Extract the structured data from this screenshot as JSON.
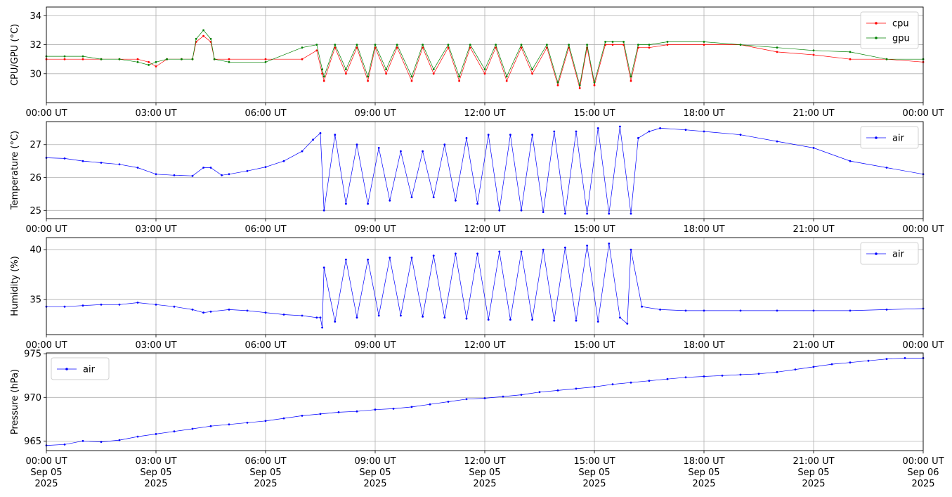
{
  "chart_data": [
    {
      "type": "line",
      "ylabel": "CPU/GPU (°C)",
      "xlim": [
        0,
        24
      ],
      "ylim": [
        28,
        34.6
      ],
      "yticks": [
        30,
        32,
        34
      ],
      "grid": true,
      "legend": "top-right",
      "x_tick_labels": [
        "00:00 UT",
        "03:00 UT",
        "06:00 UT",
        "09:00 UT",
        "12:00 UT",
        "15:00 UT",
        "18:00 UT",
        "21:00 UT",
        "00:00 UT"
      ],
      "series": [
        {
          "name": "cpu",
          "color": "#ff0000",
          "x": [
            0,
            0.5,
            1.0,
            1.5,
            2.0,
            2.5,
            2.8,
            3.0,
            3.3,
            3.7,
            4.0,
            4.1,
            4.3,
            4.5,
            4.6,
            5.0,
            6.0,
            7.0,
            7.4,
            7.55,
            7.6,
            7.9,
            8.2,
            8.5,
            8.8,
            9.0,
            9.3,
            9.6,
            10.0,
            10.3,
            10.6,
            11.0,
            11.3,
            11.6,
            12.0,
            12.3,
            12.6,
            13.0,
            13.3,
            13.7,
            14.0,
            14.3,
            14.6,
            14.8,
            15.0,
            15.3,
            15.5,
            15.8,
            16.0,
            16.2,
            16.5,
            17.0,
            18.0,
            19.0,
            20.0,
            21.0,
            22.0,
            23.0,
            24.0
          ],
          "y": [
            31.0,
            31.0,
            31.0,
            31.0,
            31.0,
            31.0,
            30.8,
            30.5,
            31.0,
            31.0,
            31.0,
            32.2,
            32.6,
            32.2,
            31.0,
            31.0,
            31.0,
            31.0,
            31.6,
            30.0,
            29.5,
            31.8,
            30.0,
            31.8,
            29.5,
            31.8,
            30.0,
            31.8,
            29.5,
            31.8,
            30.0,
            31.8,
            29.5,
            31.8,
            30.0,
            31.8,
            29.5,
            31.8,
            30.0,
            31.8,
            29.2,
            31.8,
            29.0,
            31.8,
            29.2,
            32.0,
            32.0,
            32.0,
            29.5,
            31.8,
            31.8,
            32.0,
            32.0,
            32.0,
            31.5,
            31.3,
            31.0,
            31.0,
            30.8
          ]
        },
        {
          "name": "gpu",
          "color": "#008000",
          "x": [
            0,
            0.5,
            1.0,
            1.5,
            2.0,
            2.5,
            2.8,
            3.0,
            3.3,
            3.7,
            4.0,
            4.1,
            4.3,
            4.5,
            4.6,
            5.0,
            6.0,
            7.0,
            7.4,
            7.55,
            7.6,
            7.9,
            8.2,
            8.5,
            8.8,
            9.0,
            9.3,
            9.6,
            10.0,
            10.3,
            10.6,
            11.0,
            11.3,
            11.6,
            12.0,
            12.3,
            12.6,
            13.0,
            13.3,
            13.7,
            14.0,
            14.3,
            14.6,
            14.8,
            15.0,
            15.3,
            15.5,
            15.8,
            16.0,
            16.2,
            16.5,
            17.0,
            18.0,
            19.0,
            20.0,
            21.0,
            22.0,
            23.0,
            24.0
          ],
          "y": [
            31.2,
            31.2,
            31.2,
            31.0,
            31.0,
            30.8,
            30.6,
            30.8,
            31.0,
            31.0,
            31.0,
            32.4,
            33.0,
            32.4,
            31.0,
            30.8,
            30.8,
            31.8,
            32.0,
            30.3,
            29.8,
            32.0,
            30.3,
            32.0,
            29.8,
            32.0,
            30.3,
            32.0,
            29.8,
            32.0,
            30.3,
            32.0,
            29.8,
            32.0,
            30.3,
            32.0,
            29.8,
            32.0,
            30.3,
            32.0,
            29.4,
            32.0,
            29.2,
            32.0,
            29.4,
            32.2,
            32.2,
            32.2,
            29.8,
            32.0,
            32.0,
            32.2,
            32.2,
            32.0,
            31.8,
            31.6,
            31.5,
            31.0,
            31.0
          ]
        }
      ]
    },
    {
      "type": "line",
      "ylabel": "Temperature (°C)",
      "xlim": [
        0,
        24
      ],
      "ylim": [
        24.75,
        27.7
      ],
      "yticks": [
        25,
        26,
        27
      ],
      "grid": true,
      "legend": "top-right",
      "x_tick_labels": [
        "00:00 UT",
        "03:00 UT",
        "06:00 UT",
        "09:00 UT",
        "12:00 UT",
        "15:00 UT",
        "18:00 UT",
        "21:00 UT",
        "00:00 UT"
      ],
      "series": [
        {
          "name": "air",
          "color": "#0000ff",
          "x": [
            0,
            0.5,
            1.0,
            1.5,
            2.0,
            2.5,
            3.0,
            3.5,
            4.0,
            4.3,
            4.5,
            4.8,
            5.0,
            5.5,
            6.0,
            6.5,
            7.0,
            7.3,
            7.5,
            7.6,
            7.9,
            8.2,
            8.5,
            8.8,
            9.1,
            9.4,
            9.7,
            10.0,
            10.3,
            10.6,
            10.9,
            11.2,
            11.5,
            11.8,
            12.1,
            12.4,
            12.7,
            13.0,
            13.3,
            13.6,
            13.9,
            14.2,
            14.5,
            14.8,
            15.1,
            15.4,
            15.7,
            16.0,
            16.2,
            16.5,
            16.8,
            17.5,
            18.0,
            19.0,
            20.0,
            21.0,
            22.0,
            23.0,
            24.0
          ],
          "y": [
            26.6,
            26.58,
            26.5,
            26.45,
            26.4,
            26.3,
            26.1,
            26.07,
            26.05,
            26.3,
            26.3,
            26.07,
            26.1,
            26.2,
            26.32,
            26.5,
            26.8,
            27.15,
            27.35,
            25.0,
            27.3,
            25.2,
            27.0,
            25.2,
            26.9,
            25.3,
            26.8,
            25.4,
            26.8,
            25.4,
            27.0,
            25.3,
            27.2,
            25.2,
            27.3,
            25.0,
            27.3,
            25.0,
            27.3,
            24.95,
            27.4,
            24.9,
            27.4,
            24.9,
            27.5,
            24.9,
            27.55,
            24.9,
            27.2,
            27.4,
            27.5,
            27.45,
            27.4,
            27.3,
            27.1,
            26.9,
            26.5,
            26.3,
            26.1
          ]
        }
      ]
    },
    {
      "type": "line",
      "ylabel": "Humidity (%)",
      "xlim": [
        0,
        24
      ],
      "ylim": [
        31.5,
        41.2
      ],
      "yticks": [
        35,
        40
      ],
      "grid": true,
      "legend": "top-right",
      "x_tick_labels": [
        "00:00 UT",
        "03:00 UT",
        "06:00 UT",
        "09:00 UT",
        "12:00 UT",
        "15:00 UT",
        "18:00 UT",
        "21:00 UT",
        "00:00 UT"
      ],
      "series": [
        {
          "name": "air",
          "color": "#0000ff",
          "x": [
            0,
            0.5,
            1.0,
            1.5,
            2.0,
            2.5,
            3.0,
            3.5,
            4.0,
            4.3,
            4.5,
            5.0,
            5.5,
            6.0,
            6.5,
            7.0,
            7.4,
            7.5,
            7.55,
            7.6,
            7.9,
            8.2,
            8.5,
            8.8,
            9.1,
            9.4,
            9.7,
            10.0,
            10.3,
            10.6,
            10.9,
            11.2,
            11.5,
            11.8,
            12.1,
            12.4,
            12.7,
            13.0,
            13.3,
            13.6,
            13.9,
            14.2,
            14.5,
            14.8,
            15.1,
            15.4,
            15.7,
            15.9,
            16.0,
            16.3,
            16.8,
            17.5,
            18.0,
            19.0,
            20.0,
            21.0,
            22.0,
            23.0,
            24.0
          ],
          "y": [
            34.3,
            34.3,
            34.4,
            34.5,
            34.5,
            34.7,
            34.5,
            34.3,
            34.0,
            33.7,
            33.8,
            34.0,
            33.9,
            33.7,
            33.5,
            33.4,
            33.2,
            33.2,
            32.2,
            38.2,
            32.8,
            39.0,
            33.2,
            39.0,
            33.4,
            39.2,
            33.4,
            39.2,
            33.3,
            39.4,
            33.2,
            39.6,
            33.1,
            39.6,
            33.0,
            39.8,
            33.0,
            39.8,
            33.0,
            40.0,
            32.9,
            40.2,
            32.9,
            40.4,
            32.8,
            40.6,
            33.2,
            32.6,
            40.0,
            34.3,
            34.0,
            33.9,
            33.9,
            33.9,
            33.9,
            33.9,
            33.9,
            34.0,
            34.1
          ]
        }
      ]
    },
    {
      "type": "line",
      "ylabel": "Pressure (hPa)",
      "xlim": [
        0,
        24
      ],
      "ylim": [
        963.9,
        975.1
      ],
      "yticks": [
        965,
        970,
        975
      ],
      "grid": true,
      "legend": "top-left",
      "x_tick_labels": [
        "00:00 UT\nSep 05\n2025",
        "03:00 UT\nSep 05\n2025",
        "06:00 UT\nSep 05\n2025",
        "09:00 UT\nSep 05\n2025",
        "12:00 UT\nSep 05\n2025",
        "15:00 UT\nSep 05\n2025",
        "18:00 UT\nSep 05\n2025",
        "21:00 UT\nSep 05\n2025",
        "00:00 UT\nSep 06\n2025"
      ],
      "series": [
        {
          "name": "air",
          "color": "#0000ff",
          "x": [
            0,
            0.5,
            1.0,
            1.5,
            2.0,
            2.5,
            3.0,
            3.5,
            4.0,
            4.5,
            5.0,
            5.5,
            6.0,
            6.5,
            7.0,
            7.5,
            8.0,
            8.5,
            9.0,
            9.5,
            10.0,
            10.5,
            11.0,
            11.5,
            12.0,
            12.5,
            13.0,
            13.5,
            14.0,
            14.5,
            15.0,
            15.5,
            16.0,
            16.5,
            17.0,
            17.5,
            18.0,
            18.5,
            19.0,
            19.5,
            20.0,
            20.5,
            21.0,
            21.5,
            22.0,
            22.5,
            23.0,
            23.5,
            24.0
          ],
          "y": [
            964.5,
            964.6,
            965.0,
            964.9,
            965.1,
            965.5,
            965.8,
            966.1,
            966.4,
            966.7,
            966.9,
            967.1,
            967.3,
            967.6,
            967.9,
            968.1,
            968.3,
            968.4,
            968.6,
            968.7,
            968.9,
            969.2,
            969.5,
            969.8,
            969.9,
            970.1,
            970.3,
            970.6,
            970.8,
            971.0,
            971.2,
            971.5,
            971.7,
            971.9,
            972.1,
            972.3,
            972.4,
            972.5,
            972.6,
            972.7,
            972.9,
            973.2,
            973.5,
            973.8,
            974.0,
            974.2,
            974.4,
            974.5,
            974.5
          ]
        }
      ]
    }
  ]
}
